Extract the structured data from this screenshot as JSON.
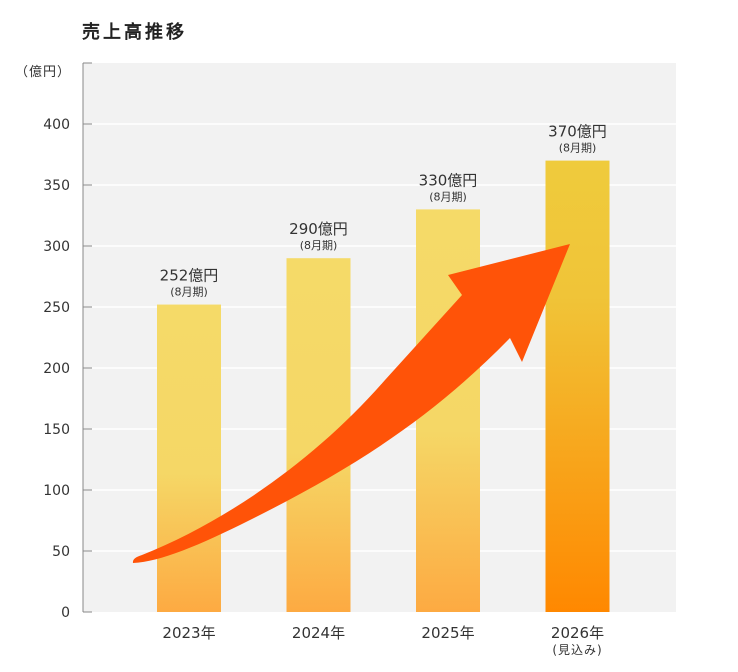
{
  "chart_data": {
    "type": "bar",
    "title": "売上高推移",
    "ylabel": "（億円）",
    "xlabel": "",
    "ylim": [
      0,
      450
    ],
    "yticks": [
      0,
      50,
      100,
      150,
      200,
      250,
      300,
      350,
      400
    ],
    "grid": true,
    "categories": [
      "2023年",
      "2024年",
      "2025年",
      "2026年"
    ],
    "category_notes": [
      "",
      "",
      "",
      "(見込み)"
    ],
    "values": [
      252,
      290,
      330,
      370
    ],
    "data_labels": [
      "252億円",
      "290億円",
      "330億円",
      "370億円"
    ],
    "data_sublabels": [
      "(8月期)",
      "(8月期)",
      "(8月期)",
      "(8月期)"
    ],
    "colors": {
      "bar_top": "#f5da68",
      "bar_bottom": "#fdaa42",
      "forecast_top": "#efcb3c",
      "forecast_bottom": "#ff8800",
      "arrow": "#ff5308",
      "plot_bg": "#f2f2f2"
    },
    "annotations": [
      "growth-arrow"
    ]
  }
}
